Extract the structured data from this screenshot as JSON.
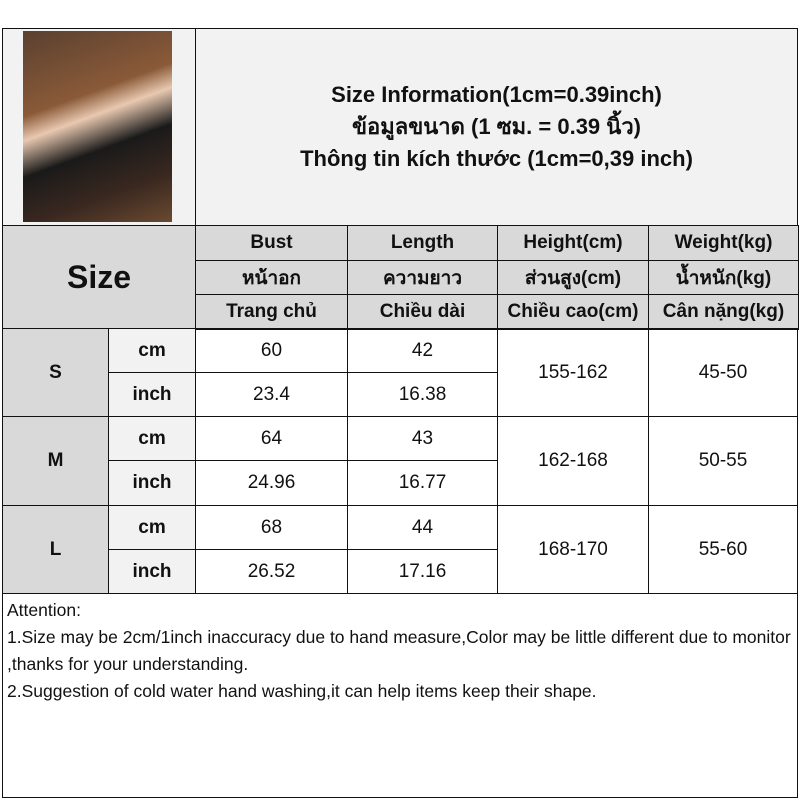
{
  "title": [
    "Size Information(1cm=0.39inch)",
    "ข้อมูลขนาด (1 ซม. = 0.39 นิ้ว)",
    "Thông tin kích thước (1cm=0,39 inch)"
  ],
  "size_label": "Size",
  "headers": [
    [
      "Bust",
      "หน้าอก",
      "Trang chủ"
    ],
    [
      "Length",
      "ความยาว",
      "Chiều dài"
    ],
    [
      "Height(cm)",
      "ส่วนสูง(cm)",
      "Chiều cao(cm)"
    ],
    [
      "Weight(kg)",
      "น้ำหนัก(kg)",
      "Cân nặng(kg)"
    ]
  ],
  "rows": [
    {
      "size": "S",
      "cm": {
        "unit": "cm",
        "bust": "60",
        "length": "42"
      },
      "inch": {
        "unit": "inch",
        "bust": "23.4",
        "length": "16.38"
      },
      "height": "155-162",
      "weight": "45-50"
    },
    {
      "size": "M",
      "cm": {
        "unit": "cm",
        "bust": "64",
        "length": "43"
      },
      "inch": {
        "unit": "inch",
        "bust": "24.96",
        "length": "16.77"
      },
      "height": "162-168",
      "weight": "50-55"
    },
    {
      "size": "L",
      "cm": {
        "unit": "cm",
        "bust": "68",
        "length": "44"
      },
      "inch": {
        "unit": "inch",
        "bust": "26.52",
        "length": "17.16"
      },
      "height": "168-170",
      "weight": "55-60"
    }
  ],
  "notes": [
    "Attention:",
    "1.Size may be 2cm/1inch inaccuracy due to hand measure,Color may be little different due to monitor ,thanks for your understanding.",
    "2.Suggestion of cold water hand washing,it can help items keep their shape."
  ]
}
